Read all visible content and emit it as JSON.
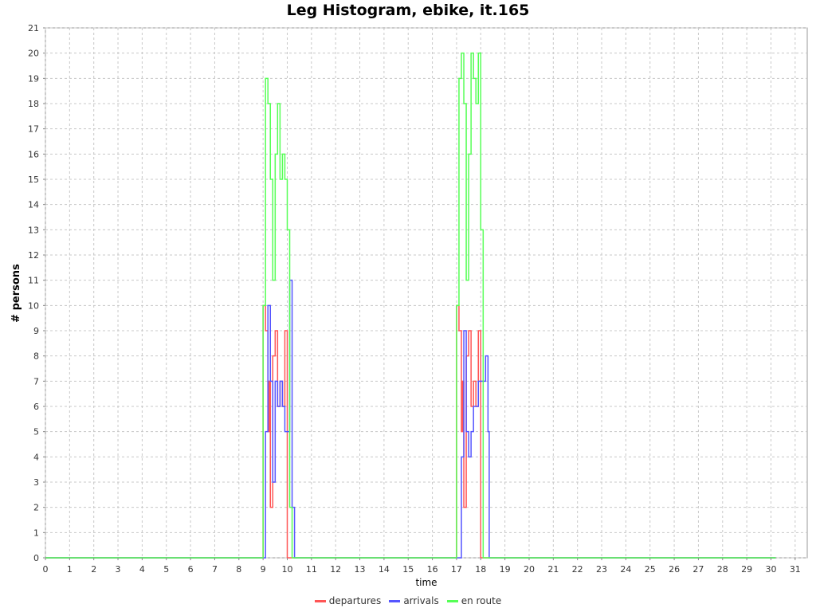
{
  "chart_data": {
    "type": "line",
    "title": "Leg Histogram, ebike, it.165",
    "xlabel": "time",
    "ylabel": "# persons",
    "xlim": [
      0,
      31.5
    ],
    "ylim": [
      0,
      21
    ],
    "x_ticks": [
      "0",
      "1",
      "2",
      "3",
      "4",
      "5",
      "6",
      "7",
      "8",
      "9",
      "10",
      "11",
      "12",
      "13",
      "14",
      "15",
      "16",
      "17",
      "18",
      "19",
      "20",
      "21",
      "22",
      "23",
      "24",
      "25",
      "26",
      "27",
      "28",
      "29",
      "30",
      "31"
    ],
    "y_ticks": [
      "0",
      "1",
      "2",
      "3",
      "4",
      "5",
      "6",
      "7",
      "8",
      "9",
      "10",
      "11",
      "12",
      "13",
      "14",
      "15",
      "16",
      "17",
      "18",
      "19",
      "20",
      "21"
    ],
    "grid": true,
    "legend_position": "bottom",
    "series": [
      {
        "name": "departures",
        "color": "#ff5555",
        "points": [
          [
            0,
            0
          ],
          [
            9.0,
            0
          ],
          [
            9.0,
            10
          ],
          [
            9.1,
            9
          ],
          [
            9.2,
            5
          ],
          [
            9.25,
            7
          ],
          [
            9.3,
            2
          ],
          [
            9.4,
            8
          ],
          [
            9.5,
            9
          ],
          [
            9.6,
            6
          ],
          [
            9.7,
            7
          ],
          [
            9.8,
            6
          ],
          [
            9.9,
            9
          ],
          [
            10.0,
            0
          ],
          [
            17.0,
            0
          ],
          [
            17.0,
            10
          ],
          [
            17.1,
            9
          ],
          [
            17.2,
            5
          ],
          [
            17.25,
            7
          ],
          [
            17.3,
            2
          ],
          [
            17.4,
            8
          ],
          [
            17.5,
            9
          ],
          [
            17.6,
            6
          ],
          [
            17.7,
            7
          ],
          [
            17.8,
            6
          ],
          [
            17.9,
            9
          ],
          [
            18.0,
            0
          ],
          [
            30.2,
            0
          ]
        ]
      },
      {
        "name": "arrivals",
        "color": "#5555ff",
        "points": [
          [
            0,
            0
          ],
          [
            9.1,
            0
          ],
          [
            9.1,
            5
          ],
          [
            9.2,
            10
          ],
          [
            9.3,
            7
          ],
          [
            9.4,
            3
          ],
          [
            9.5,
            7
          ],
          [
            9.6,
            6
          ],
          [
            9.7,
            7
          ],
          [
            9.8,
            6
          ],
          [
            9.9,
            5
          ],
          [
            10.1,
            11
          ],
          [
            10.2,
            2
          ],
          [
            10.3,
            0
          ],
          [
            17.2,
            0
          ],
          [
            17.2,
            4
          ],
          [
            17.3,
            9
          ],
          [
            17.4,
            5
          ],
          [
            17.5,
            4
          ],
          [
            17.6,
            5
          ],
          [
            17.7,
            6
          ],
          [
            17.8,
            6
          ],
          [
            17.9,
            7
          ],
          [
            18.0,
            7
          ],
          [
            18.2,
            8
          ],
          [
            18.3,
            5
          ],
          [
            18.35,
            0
          ],
          [
            30.2,
            0
          ]
        ]
      },
      {
        "name": "en route",
        "color": "#55ff55",
        "points": [
          [
            0,
            0
          ],
          [
            9.0,
            0
          ],
          [
            9.0,
            10
          ],
          [
            9.1,
            19
          ],
          [
            9.2,
            18
          ],
          [
            9.3,
            15
          ],
          [
            9.4,
            11
          ],
          [
            9.5,
            16
          ],
          [
            9.6,
            18
          ],
          [
            9.7,
            15
          ],
          [
            9.8,
            16
          ],
          [
            9.9,
            15
          ],
          [
            10.0,
            13
          ],
          [
            10.1,
            2
          ],
          [
            10.2,
            0
          ],
          [
            17.0,
            0
          ],
          [
            17.0,
            10
          ],
          [
            17.1,
            19
          ],
          [
            17.2,
            20
          ],
          [
            17.3,
            18
          ],
          [
            17.4,
            11
          ],
          [
            17.5,
            16
          ],
          [
            17.6,
            20
          ],
          [
            17.7,
            19
          ],
          [
            17.8,
            18
          ],
          [
            17.9,
            20
          ],
          [
            18.0,
            13
          ],
          [
            18.1,
            0
          ],
          [
            30.2,
            0
          ]
        ]
      }
    ]
  }
}
